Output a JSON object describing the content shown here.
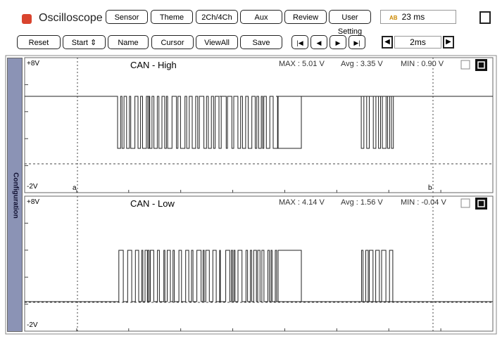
{
  "header": {
    "title": "Oscilloscope",
    "tabs": [
      "Sensor",
      "Theme",
      "2Ch/4Ch",
      "Aux",
      "Review",
      "User Setting"
    ],
    "time_display": "23 ms"
  },
  "toolbar": {
    "buttons": [
      "Reset",
      "Start",
      "Name",
      "Cursor",
      "ViewAll",
      "Save"
    ],
    "timebase": "2ms"
  },
  "side_tab": "Configuration",
  "channels": [
    {
      "name": "CAN - High",
      "top_label": "+8V",
      "bottom_label": "-2V",
      "max": "MAX : 5.01 V",
      "avg": "Avg : 3.35 V",
      "min": "MIN : 0.90 V",
      "cursors": [
        "a",
        "b"
      ]
    },
    {
      "name": "CAN - Low",
      "top_label": "+8V",
      "bottom_label": "-2V",
      "max": "MAX : 4.14 V",
      "avg": "Avg : 1.56 V",
      "min": "MIN : -0.04 V"
    }
  ]
}
